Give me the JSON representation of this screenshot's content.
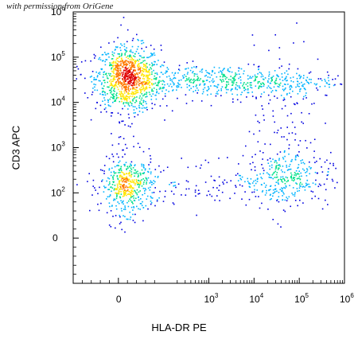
{
  "watermark": "with permission from OriGene",
  "chart_data": {
    "type": "scatter",
    "subtype": "flow-cytometry-density-dot-plot",
    "title": "",
    "xlabel": "HLA-DR PE",
    "ylabel": "CD3 APC",
    "x_scale": "biexponential",
    "y_scale": "biexponential",
    "xlim": [
      -100,
      1000000
    ],
    "ylim": [
      -100,
      1000000
    ],
    "x_ticks": [
      {
        "value": 0,
        "base": "0",
        "exp": ""
      },
      {
        "value": 1000,
        "base": "10",
        "exp": "3"
      },
      {
        "value": 10000,
        "base": "10",
        "exp": "4"
      },
      {
        "value": 100000,
        "base": "10",
        "exp": "5"
      },
      {
        "value": 1000000,
        "base": "10",
        "exp": "6"
      }
    ],
    "y_ticks": [
      {
        "value": 0,
        "base": "0",
        "exp": ""
      },
      {
        "value": 100,
        "base": "10",
        "exp": "2"
      },
      {
        "value": 1000,
        "base": "10",
        "exp": "3"
      },
      {
        "value": 10000,
        "base": "10",
        "exp": "4"
      },
      {
        "value": 100000,
        "base": "10",
        "exp": "5"
      },
      {
        "value": 1000000,
        "base": "10",
        "exp": "6"
      }
    ],
    "populations": [
      {
        "x_center": 20,
        "y_center": 35000,
        "count": 900,
        "x_spread": 0.06,
        "y_spread": 0.06
      },
      {
        "x_center": 20,
        "y_center": 140,
        "count": 420,
        "x_spread": 0.05,
        "y_spread": 0.05
      },
      {
        "x_center": 40000,
        "y_center": 200,
        "count": 300,
        "x_spread": 0.09,
        "y_spread": 0.05
      },
      {
        "x_center": 2000,
        "y_center": 30000,
        "count": 600,
        "x_spread": 0.22,
        "y_spread": 0.03
      },
      {
        "x_center": 50000,
        "y_center": 3000,
        "count": 140,
        "x_spread": 0.06,
        "y_spread": 0.16
      },
      {
        "x_center": 400,
        "y_center": 180,
        "count": 110,
        "x_spread": 0.2,
        "y_spread": 0.04
      },
      {
        "x_center": 20,
        "y_center": 2000,
        "count": 60,
        "x_spread": 0.03,
        "y_spread": 0.2
      }
    ],
    "grid": false,
    "legend": "none",
    "colormap": [
      "#0000e0",
      "#00b4ff",
      "#00e08a",
      "#ffe600",
      "#ff7a00",
      "#e00000"
    ]
  }
}
